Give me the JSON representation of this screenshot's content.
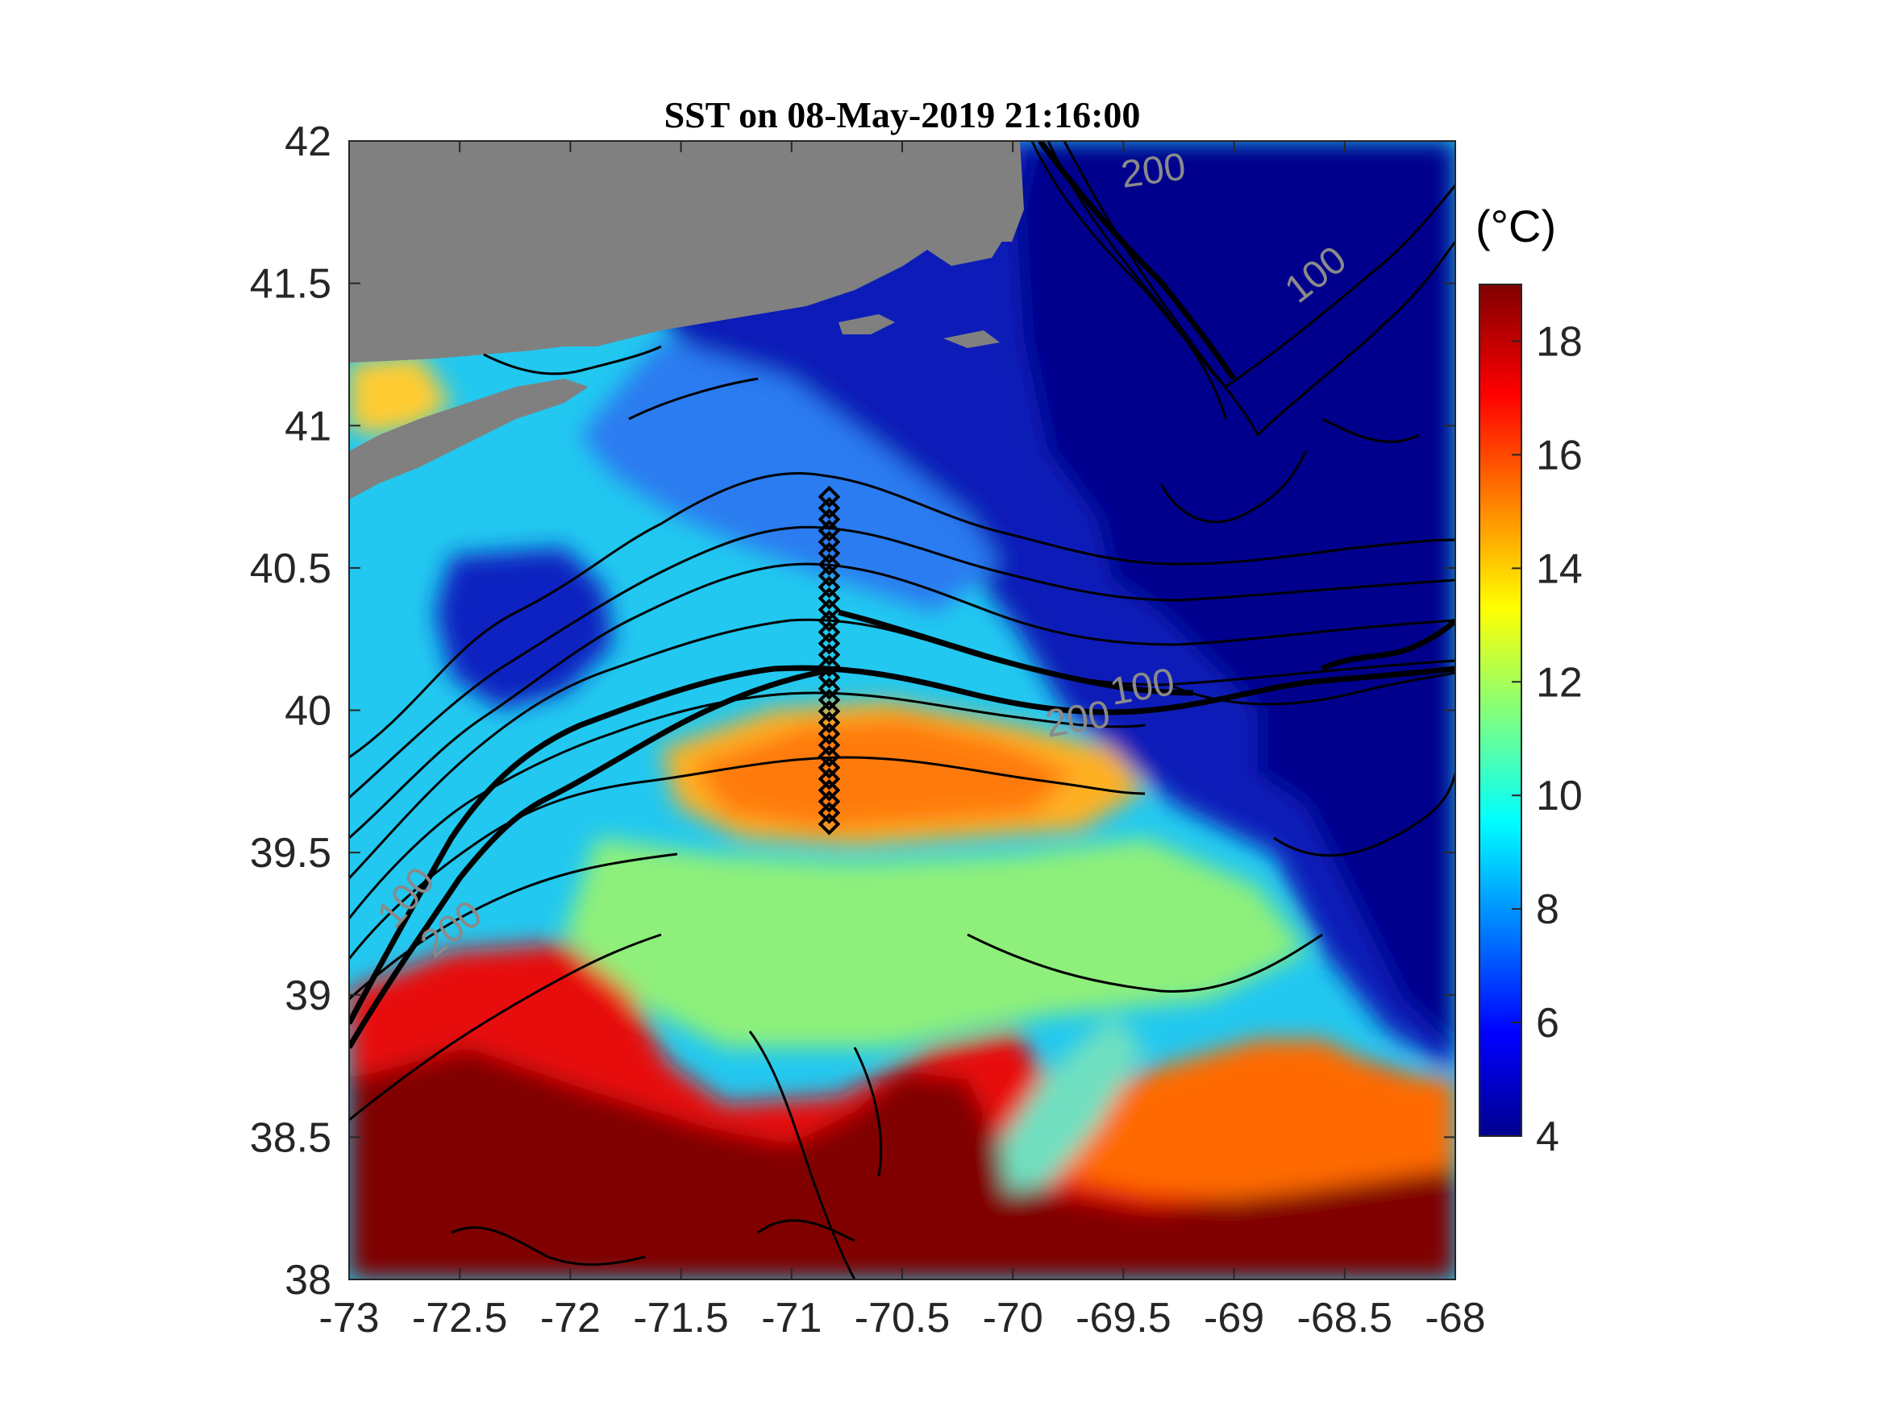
{
  "title": "SST on 08-May-2019 21:16:00",
  "x_ticks": [
    "-73",
    "-72.5",
    "-72",
    "-71.5",
    "-71",
    "-70.5",
    "-70",
    "-69.5",
    "-69",
    "-68.5",
    "-68"
  ],
  "y_ticks": [
    "42",
    "41.5",
    "41",
    "40.5",
    "40",
    "39.5",
    "39",
    "38.5",
    "38"
  ],
  "colorbar": {
    "unit_label": "(°C)",
    "ticks": [
      "18",
      "16",
      "14",
      "12",
      "10",
      "8",
      "6",
      "4"
    ]
  },
  "contour_labels": [
    {
      "text": "200",
      "name": "contour-label-200-north"
    },
    {
      "text": "100",
      "name": "contour-label-100-northeast"
    },
    {
      "text": "100",
      "name": "contour-label-100-center"
    },
    {
      "text": "200",
      "name": "contour-label-200-center"
    },
    {
      "text": "100",
      "name": "contour-label-100-southwest"
    },
    {
      "text": "200",
      "name": "contour-label-200-southwest"
    }
  ],
  "colors": {
    "land": "#808080",
    "cold": "#00008f",
    "mid": "#00e5ff",
    "warm": "#ff8c00",
    "hot": "#800000",
    "contour": "#000000"
  },
  "map_data": {
    "lon_range": [
      -73,
      -68
    ],
    "lat_range": [
      38,
      42
    ],
    "temperature_range_c": [
      4,
      19
    ],
    "contour_depths_m": [
      100,
      200
    ],
    "transect": {
      "lon": -70.83,
      "lat_range": [
        39.6,
        40.75
      ],
      "marker_count": 30
    }
  }
}
